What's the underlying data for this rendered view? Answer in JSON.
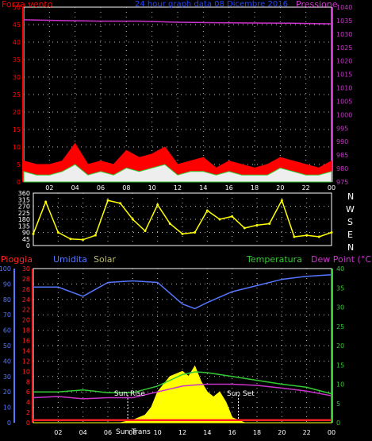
{
  "header": {
    "left_label": "Forza vento",
    "title": "24 hour graph data  08 Dicembre 2016",
    "right_label": "Pressione"
  },
  "bottom_header": {
    "rain_label": "Pioggia",
    "humidity_label": "Umidita",
    "solar_label": "Solar",
    "temp_label": "Temperatura",
    "dew_label": "Dew Point (°C)"
  },
  "direction_labels": [
    "N",
    "W",
    "S",
    "E",
    "N"
  ],
  "sun": {
    "rise_label": "Sun Rise",
    "transit_label": "Sun Trans",
    "set_label": "Sun Set"
  },
  "colors": {
    "wind_axis": "#ff0000",
    "pressure_axis": "#cc33cc",
    "humidity_axis": "#5577ff",
    "rain_axis": "#ff2222",
    "temp_axis": "#33cc33",
    "yellow": "#ffff00",
    "grid": "#bbbbbb"
  },
  "chart_data": [
    {
      "type": "area",
      "panel": "wind-pressure",
      "x_ticks": [
        "02",
        "04",
        "06",
        "08",
        "10",
        "12",
        "14",
        "16",
        "18",
        "20",
        "22",
        "00"
      ],
      "y_left_ticks": [
        0,
        5,
        10,
        15,
        20,
        25,
        30,
        35,
        40,
        45,
        50
      ],
      "y_left_range": [
        0,
        50
      ],
      "y_right_ticks": [
        975,
        980,
        985,
        990,
        995,
        1000,
        1005,
        1010,
        1015,
        1020,
        1025,
        1030,
        1035,
        1040
      ],
      "y_right_range": [
        975,
        1040
      ],
      "series": [
        {
          "name": "Pressione",
          "x": [
            0,
            3,
            6,
            9,
            12,
            15,
            18,
            21,
            24
          ],
          "values": [
            1035.3,
            1035.0,
            1034.8,
            1034.8,
            1034.4,
            1034.2,
            1034.1,
            1034.0,
            1033.8
          ]
        },
        {
          "name": "Forza vento",
          "x": [
            0,
            1,
            2,
            3,
            4,
            5,
            6,
            7,
            8,
            9,
            10,
            11,
            12,
            13,
            14,
            15,
            16,
            17,
            18,
            19,
            20,
            21,
            22,
            23,
            24
          ],
          "gust": [
            6,
            5,
            5,
            6,
            11,
            5,
            6,
            5,
            9,
            7,
            8,
            10,
            5,
            6,
            7,
            4,
            6,
            5,
            4,
            5,
            7,
            6,
            5,
            4,
            6
          ],
          "speed": [
            3,
            2,
            2,
            3,
            5,
            2,
            3,
            2,
            4,
            3,
            4,
            5,
            2,
            3,
            3,
            2,
            3,
            2,
            2,
            2,
            4,
            3,
            2,
            2,
            3
          ]
        }
      ]
    },
    {
      "type": "scatter",
      "panel": "wind-direction",
      "y_ticks": [
        0,
        45,
        90,
        135,
        180,
        225,
        270,
        315,
        360
      ],
      "y_range": [
        0,
        360
      ],
      "x": [
        0,
        1,
        2,
        3,
        4,
        5,
        6,
        7,
        8,
        9,
        10,
        11,
        12,
        13,
        14,
        15,
        16,
        17,
        18,
        19,
        20,
        21,
        22,
        23,
        24
      ],
      "values": [
        80,
        300,
        90,
        45,
        40,
        70,
        310,
        290,
        180,
        100,
        280,
        150,
        80,
        90,
        240,
        180,
        200,
        120,
        140,
        150,
        310,
        60,
        70,
        60,
        90
      ]
    },
    {
      "type": "line",
      "panel": "temperature-humidity",
      "y_humidity_ticks": [
        0,
        10,
        20,
        30,
        40,
        50,
        60,
        70,
        80,
        90,
        100
      ],
      "y_humidity_range": [
        0,
        100
      ],
      "y_rain_ticks": [
        0,
        2,
        4,
        6,
        8,
        10,
        12,
        14,
        16,
        18,
        20,
        22,
        24,
        26,
        28,
        30
      ],
      "y_rain_range": [
        0,
        30
      ],
      "y_temp_ticks": [
        0,
        5,
        10,
        15,
        20,
        25,
        30,
        35,
        40
      ],
      "y_temp_range": [
        0,
        40
      ],
      "series": [
        {
          "name": "Umidita",
          "x": [
            0,
            2,
            4,
            6,
            8,
            10,
            12,
            13,
            14,
            16,
            18,
            20,
            22,
            24
          ],
          "values": [
            88,
            88,
            82,
            91,
            92,
            91,
            77,
            74,
            78,
            85,
            89,
            93,
            95,
            96
          ]
        },
        {
          "name": "Temperatura",
          "x": [
            0,
            2,
            4,
            6,
            8,
            10,
            12,
            13,
            14,
            16,
            18,
            20,
            22,
            24
          ],
          "values": [
            8,
            8,
            8.5,
            7.8,
            7.8,
            9.5,
            12.5,
            13.2,
            13.0,
            12.0,
            11.0,
            10.0,
            9.2,
            7.5
          ]
        },
        {
          "name": "Dew Point",
          "x": [
            0,
            2,
            4,
            6,
            8,
            10,
            12,
            13,
            14,
            16,
            18,
            20,
            22,
            24
          ],
          "values": [
            6.5,
            6.8,
            6.2,
            6.5,
            6.5,
            8.0,
            9.5,
            9.8,
            10.0,
            10.0,
            9.7,
            9.0,
            8.2,
            7.0
          ]
        },
        {
          "name": "Solar",
          "x": [
            0,
            7,
            8,
            9,
            9.5,
            10,
            11,
            12,
            12.5,
            13,
            13.5,
            14,
            14.5,
            15,
            15.5,
            16,
            17,
            24
          ],
          "values": [
            0,
            0,
            0.5,
            1.5,
            3,
            6,
            9,
            10,
            9,
            11,
            8,
            6,
            5,
            6,
            4,
            1,
            0,
            0
          ]
        },
        {
          "name": "Pioggia",
          "x": [
            0,
            24
          ],
          "values": [
            0.5,
            0.5
          ]
        }
      ],
      "sun_rise_x": 7.6,
      "sun_transit_x": 11.9,
      "sun_set_x": 16.5
    }
  ]
}
